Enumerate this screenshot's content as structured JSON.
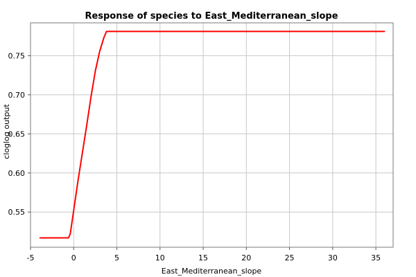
{
  "chart_data": {
    "type": "line",
    "title": "Response of species to East_Mediterranean_slope",
    "xlabel": "East_Mediterranean_slope",
    "ylabel": "cloglog output",
    "xlim": [
      -5,
      37
    ],
    "ylim": [
      0.505,
      0.792
    ],
    "xticks": [
      -5,
      0,
      5,
      10,
      15,
      20,
      25,
      30,
      35
    ],
    "xtick_labels": [
      "-5",
      "0",
      "5",
      "10",
      "15",
      "20",
      "25",
      "30",
      "35"
    ],
    "yticks": [
      0.55,
      0.6,
      0.65,
      0.7,
      0.75
    ],
    "ytick_labels": [
      "0.55",
      "0.60",
      "0.65",
      "0.70",
      "0.75"
    ],
    "grid": true,
    "legend": "none",
    "series": [
      {
        "color": "#ff0000",
        "x": [
          -3.9,
          -0.6,
          -0.4,
          0.0,
          0.5,
          1.0,
          1.5,
          2.0,
          2.5,
          3.0,
          3.5,
          3.8,
          36.0
        ],
        "y": [
          0.517,
          0.517,
          0.522,
          0.552,
          0.59,
          0.625,
          0.66,
          0.697,
          0.73,
          0.755,
          0.773,
          0.781,
          0.781
        ]
      }
    ]
  }
}
